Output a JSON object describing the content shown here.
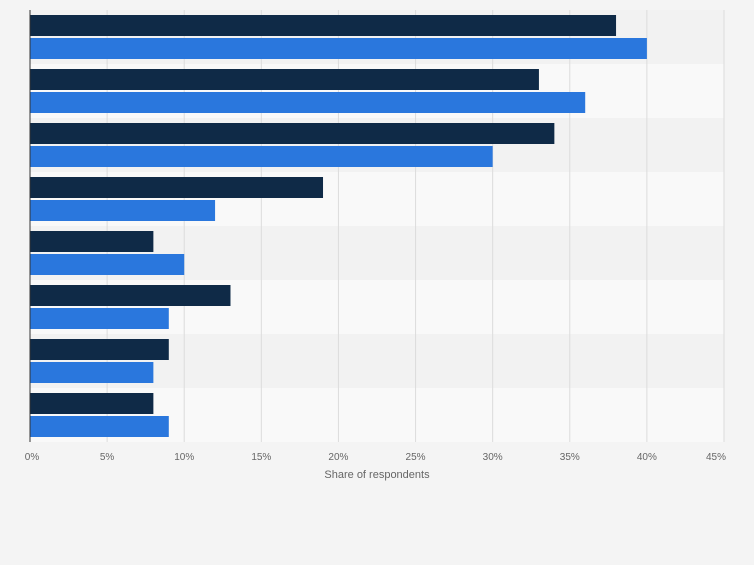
{
  "chart_data": {
    "type": "bar",
    "orientation": "horizontal",
    "categories": [
      "",
      "",
      "",
      "",
      "",
      "",
      "",
      ""
    ],
    "series": [
      {
        "color": "#0f2a47",
        "values": [
          38,
          33,
          34,
          19,
          8,
          13,
          9,
          8
        ]
      },
      {
        "color": "#2a77dd",
        "values": [
          40,
          36,
          30,
          12,
          10,
          9,
          8,
          9
        ]
      }
    ],
    "xlabel": "Share of respondents",
    "ylabel": "",
    "xlim": [
      0,
      45
    ],
    "xticks": [
      "0%",
      "5%",
      "10%",
      "15%",
      "20%",
      "25%",
      "30%",
      "35%",
      "40%",
      "45%"
    ],
    "grid": true,
    "legend": "none",
    "colors": {
      "background": "#f4f4f4",
      "band_light": "#f9f9f9",
      "band_dark": "#f2f2f2",
      "gridline": "#dcdcdc",
      "axis": "#333333",
      "tick_text": "#666666"
    }
  }
}
